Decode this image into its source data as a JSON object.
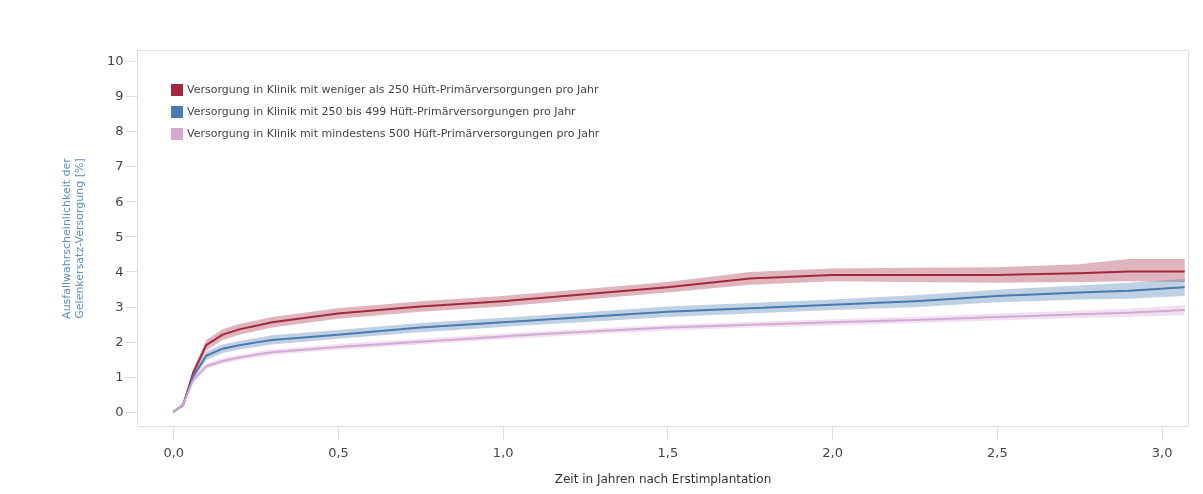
{
  "chart_data": {
    "type": "line",
    "xlabel": "Zeit in Jahren nach Erstimplantation",
    "ylabel": "Ausfallwahrscheinlichkeit der Gelenkersatz-Versorgung [%]",
    "x": [
      0,
      0.03,
      0.06,
      0.1,
      0.15,
      0.2,
      0.3,
      0.5,
      0.75,
      1.0,
      1.25,
      1.5,
      1.75,
      2.0,
      2.25,
      2.5,
      2.75,
      2.9,
      3.07
    ],
    "xlim": [
      -0.11,
      3.08
    ],
    "ylim": [
      -0.4,
      10.3
    ],
    "xticks": [
      {
        "value": 0,
        "label": "0,0"
      },
      {
        "value": 0.5,
        "label": "0,5"
      },
      {
        "value": 1,
        "label": "1,0"
      },
      {
        "value": 1.5,
        "label": "1,5"
      },
      {
        "value": 2,
        "label": "2,0"
      },
      {
        "value": 2.5,
        "label": "2,5"
      },
      {
        "value": 3,
        "label": "3,0"
      }
    ],
    "yticks": [
      0,
      1,
      2,
      3,
      4,
      5,
      6,
      7,
      8,
      9,
      10
    ],
    "grid": false,
    "legend": "top left",
    "series": [
      {
        "name": "Versorgung in Klinik mit weniger als 250 Hüft-Primärversorgungen pro Jahr",
        "color": "#a3283f",
        "values": [
          0,
          0.2,
          1.1,
          1.9,
          2.2,
          2.35,
          2.55,
          2.8,
          3.0,
          3.15,
          3.35,
          3.55,
          3.8,
          3.9,
          3.9,
          3.9,
          3.95,
          4.0,
          4.0
        ],
        "lower": [
          0,
          0.15,
          1.0,
          1.75,
          2.05,
          2.2,
          2.4,
          2.65,
          2.85,
          3.0,
          3.2,
          3.4,
          3.62,
          3.72,
          3.7,
          3.68,
          3.7,
          3.72,
          3.7
        ],
        "upper": [
          0,
          0.25,
          1.2,
          2.05,
          2.35,
          2.5,
          2.7,
          2.95,
          3.15,
          3.3,
          3.5,
          3.7,
          3.98,
          4.08,
          4.1,
          4.12,
          4.2,
          4.35,
          4.35
        ]
      },
      {
        "name": "Versorgung in Klinik mit 250 bis 499 Hüft-Primärversorgungen pro Jahr",
        "color": "#4a7bb0",
        "values": [
          0,
          0.2,
          1.0,
          1.6,
          1.8,
          1.9,
          2.05,
          2.2,
          2.4,
          2.55,
          2.7,
          2.85,
          2.95,
          3.05,
          3.15,
          3.3,
          3.4,
          3.45,
          3.55
        ],
        "lower": [
          0,
          0.15,
          0.9,
          1.48,
          1.68,
          1.78,
          1.92,
          2.08,
          2.27,
          2.42,
          2.56,
          2.7,
          2.8,
          2.9,
          2.98,
          3.12,
          3.2,
          3.22,
          3.3
        ],
        "upper": [
          0,
          0.25,
          1.1,
          1.72,
          1.92,
          2.02,
          2.18,
          2.33,
          2.53,
          2.68,
          2.84,
          3.0,
          3.1,
          3.2,
          3.32,
          3.48,
          3.6,
          3.68,
          3.78
        ]
      },
      {
        "name": "Versorgung in Klinik mit mindestens 500 Hüft-Primärversorgungen pro Jahr",
        "color": "#d4a9d4",
        "values": [
          0,
          0.2,
          0.9,
          1.3,
          1.45,
          1.55,
          1.7,
          1.85,
          2.0,
          2.15,
          2.28,
          2.4,
          2.48,
          2.55,
          2.62,
          2.7,
          2.78,
          2.82,
          2.9
        ],
        "lower": [
          0,
          0.15,
          0.82,
          1.22,
          1.37,
          1.47,
          1.62,
          1.77,
          1.92,
          2.07,
          2.2,
          2.32,
          2.4,
          2.46,
          2.53,
          2.6,
          2.67,
          2.7,
          2.76
        ],
        "upper": [
          0,
          0.25,
          0.98,
          1.38,
          1.53,
          1.63,
          1.78,
          1.93,
          2.08,
          2.23,
          2.36,
          2.48,
          2.56,
          2.64,
          2.71,
          2.8,
          2.89,
          2.94,
          3.04
        ]
      }
    ]
  }
}
